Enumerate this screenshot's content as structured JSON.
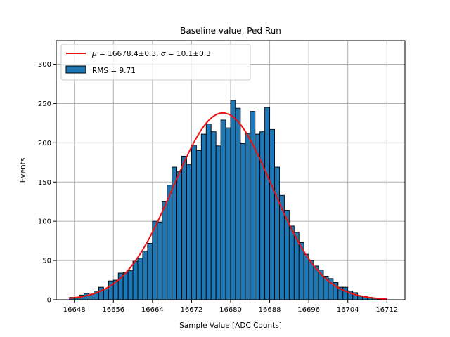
{
  "chart_data": {
    "type": "bar",
    "title": "Baseline value, Ped Run",
    "xlabel": "Sample Value [ADC Counts]",
    "ylabel": "Events",
    "xlim": [
      16644.3,
      16715.7
    ],
    "ylim": [
      0,
      330
    ],
    "xticks": [
      16648,
      16656,
      16664,
      16672,
      16680,
      16688,
      16696,
      16704,
      16712
    ],
    "yticks": [
      0,
      50,
      100,
      150,
      200,
      250,
      300
    ],
    "grid": true,
    "legend_position": "top-left",
    "colors": {
      "bars": "#1f77b4",
      "bar_edge": "#000000",
      "fit": "#ee1111",
      "grid": "#b0b0b0"
    },
    "histogram": {
      "name": "RMS = 9.71",
      "bin_start": 16647.0,
      "bin_width": 1.0,
      "counts": [
        3,
        2,
        6,
        8,
        7,
        11,
        16,
        14,
        24,
        25,
        34,
        35,
        37,
        49,
        53,
        62,
        72,
        100,
        99,
        125,
        146,
        169,
        163,
        183,
        172,
        197,
        190,
        211,
        224,
        214,
        196,
        229,
        219,
        254,
        244,
        199,
        212,
        240,
        211,
        214,
        245,
        217,
        169,
        133,
        114,
        94,
        86,
        73,
        58,
        50,
        43,
        38,
        30,
        27,
        22,
        16,
        16,
        11,
        9,
        5,
        4,
        3,
        2,
        1,
        1
      ]
    },
    "fit": {
      "name": "$\\mu = 16678.4\\pm0.3$, $\\sigma = 10.1\\pm0.3$",
      "mu": 16678.4,
      "sigma": 10.1,
      "amplitude": 238,
      "x_range": [
        16647,
        16712
      ]
    },
    "legend": {
      "fit_label_mu_symbol": "μ",
      "fit_label_mu_text": " = 16678.4±0.3, ",
      "fit_label_sigma_symbol": "σ",
      "fit_label_sigma_text": " = 10.1±0.3",
      "hist_label": "RMS = 9.71"
    }
  }
}
